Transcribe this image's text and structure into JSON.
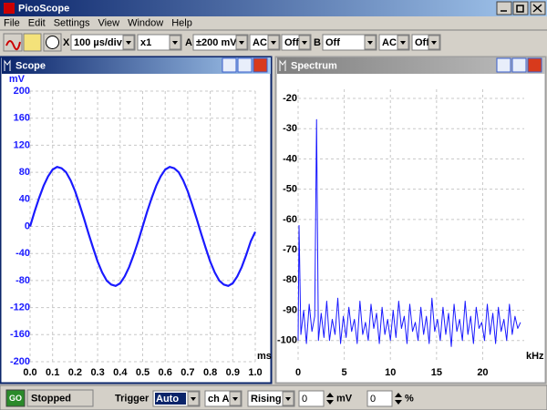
{
  "window": {
    "title": "PicoScope"
  },
  "menu": [
    "File",
    "Edit",
    "Settings",
    "View",
    "Window",
    "Help"
  ],
  "toolbar": {
    "axis": "X",
    "timebase": "100 µs/div",
    "multiplier": "x1",
    "channel_a": "A",
    "range_a": "±200 mV",
    "coupling_a": "AC",
    "offset_a": "Off",
    "channel_b": "B",
    "range_b": "Off",
    "coupling_b": "AC",
    "offset_b": "Off"
  },
  "status": {
    "button": "GO",
    "state": "Stopped",
    "trigger_label": "Trigger",
    "trigger_mode": "Auto",
    "trigger_channel": "ch A",
    "trigger_edge": "Rising",
    "trigger_level": "0",
    "trigger_level_unit": "mV",
    "pretrigger": "0",
    "pretrigger_unit": "%"
  },
  "chart_data": [
    {
      "type": "line",
      "title": "Scope",
      "ylabel": "mV",
      "xlabel": "ms",
      "color": "#1a1aff",
      "grid": true,
      "xlim": [
        0,
        1
      ],
      "ylim": [
        -200,
        200
      ],
      "xticks": [
        {
          "value": 0,
          "label": "0.0"
        },
        0.1,
        0.2,
        0.3,
        0.4,
        0.5,
        0.6,
        0.7,
        0.8,
        0.9,
        {
          "value": 1,
          "label": "1.0"
        }
      ],
      "yticks": [
        200,
        160,
        120,
        80,
        40,
        0,
        -40,
        -80,
        -120,
        -160,
        -200
      ],
      "x": [
        0,
        0.02,
        0.04,
        0.06,
        0.08,
        0.1,
        0.12,
        0.14,
        0.16,
        0.18,
        0.2,
        0.22,
        0.24,
        0.26,
        0.28,
        0.3,
        0.32,
        0.34,
        0.36,
        0.38,
        0.4,
        0.42,
        0.44,
        0.46,
        0.48,
        0.5,
        0.52,
        0.54,
        0.56,
        0.58,
        0.6,
        0.62,
        0.64,
        0.66,
        0.68,
        0.7,
        0.72,
        0.74,
        0.76,
        0.78,
        0.8,
        0.82,
        0.84,
        0.86,
        0.88,
        0.9,
        0.92,
        0.94,
        0.96,
        0.98,
        1
      ],
      "values": [
        0,
        22,
        42,
        60,
        74,
        84,
        88,
        86,
        80,
        68,
        52,
        32,
        11,
        -11,
        -32,
        -52,
        -68,
        -80,
        -86,
        -88,
        -84,
        -74,
        -60,
        -42,
        -22,
        0,
        22,
        42,
        60,
        74,
        84,
        88,
        86,
        80,
        68,
        52,
        32,
        11,
        -11,
        -32,
        -52,
        -68,
        -80,
        -86,
        -88,
        -84,
        -74,
        -60,
        -42,
        -22,
        -8
      ]
    },
    {
      "type": "line",
      "title": "Spectrum",
      "xlabel": "kHz",
      "color": "#1a1aff",
      "grid": true,
      "xlim": [
        0,
        24.5
      ],
      "ylim": [
        -107,
        -17
      ],
      "xticks": [
        0,
        5,
        10,
        15,
        20
      ],
      "yticks": [
        -20,
        -30,
        -40,
        -50,
        -60,
        -70,
        -80,
        -90,
        -100
      ],
      "x": [
        0,
        0.1,
        0.3,
        0.6,
        0.9,
        1.2,
        1.5,
        1.8,
        2.0,
        2.2,
        2.5,
        2.8,
        3.1,
        3.4,
        3.7,
        4.0,
        4.3,
        4.6,
        4.9,
        5.2,
        5.5,
        5.8,
        6.1,
        6.4,
        6.7,
        7.0,
        7.3,
        7.6,
        7.9,
        8.2,
        8.5,
        8.8,
        9.1,
        9.4,
        9.7,
        10.0,
        10.3,
        10.6,
        10.9,
        11.2,
        11.5,
        11.8,
        12.1,
        12.4,
        12.7,
        13.0,
        13.3,
        13.6,
        13.9,
        14.2,
        14.5,
        14.8,
        15.1,
        15.4,
        15.7,
        16.0,
        16.3,
        16.6,
        16.9,
        17.2,
        17.5,
        17.8,
        18.1,
        18.4,
        18.7,
        19.0,
        19.3,
        19.6,
        19.9,
        20.2,
        20.5,
        20.8,
        21.1,
        21.4,
        21.7,
        22.0,
        22.3,
        22.6,
        22.9,
        23.2,
        23.5,
        23.8,
        24.1
      ],
      "values": [
        -100,
        -62,
        -98,
        -90,
        -101,
        -88,
        -97,
        -92,
        -27,
        -100,
        -91,
        -99,
        -87,
        -100,
        -93,
        -98,
        -86,
        -101,
        -92,
        -99,
        -89,
        -97,
        -93,
        -101,
        -87,
        -98,
        -94,
        -100,
        -88,
        -96,
        -91,
        -101,
        -89,
        -98,
        -93,
        -100,
        -90,
        -99,
        -87,
        -96,
        -92,
        -101,
        -88,
        -97,
        -94,
        -100,
        -89,
        -98,
        -92,
        -101,
        -86,
        -97,
        -93,
        -100,
        -89,
        -98,
        -91,
        -102,
        -88,
        -97,
        -93,
        -100,
        -87,
        -98,
        -92,
        -101,
        -89,
        -96,
        -94,
        -100,
        -88,
        -98,
        -91,
        -101,
        -89,
        -97,
        -93,
        -100,
        -88,
        -98,
        -92,
        -96,
        -94
      ]
    }
  ]
}
